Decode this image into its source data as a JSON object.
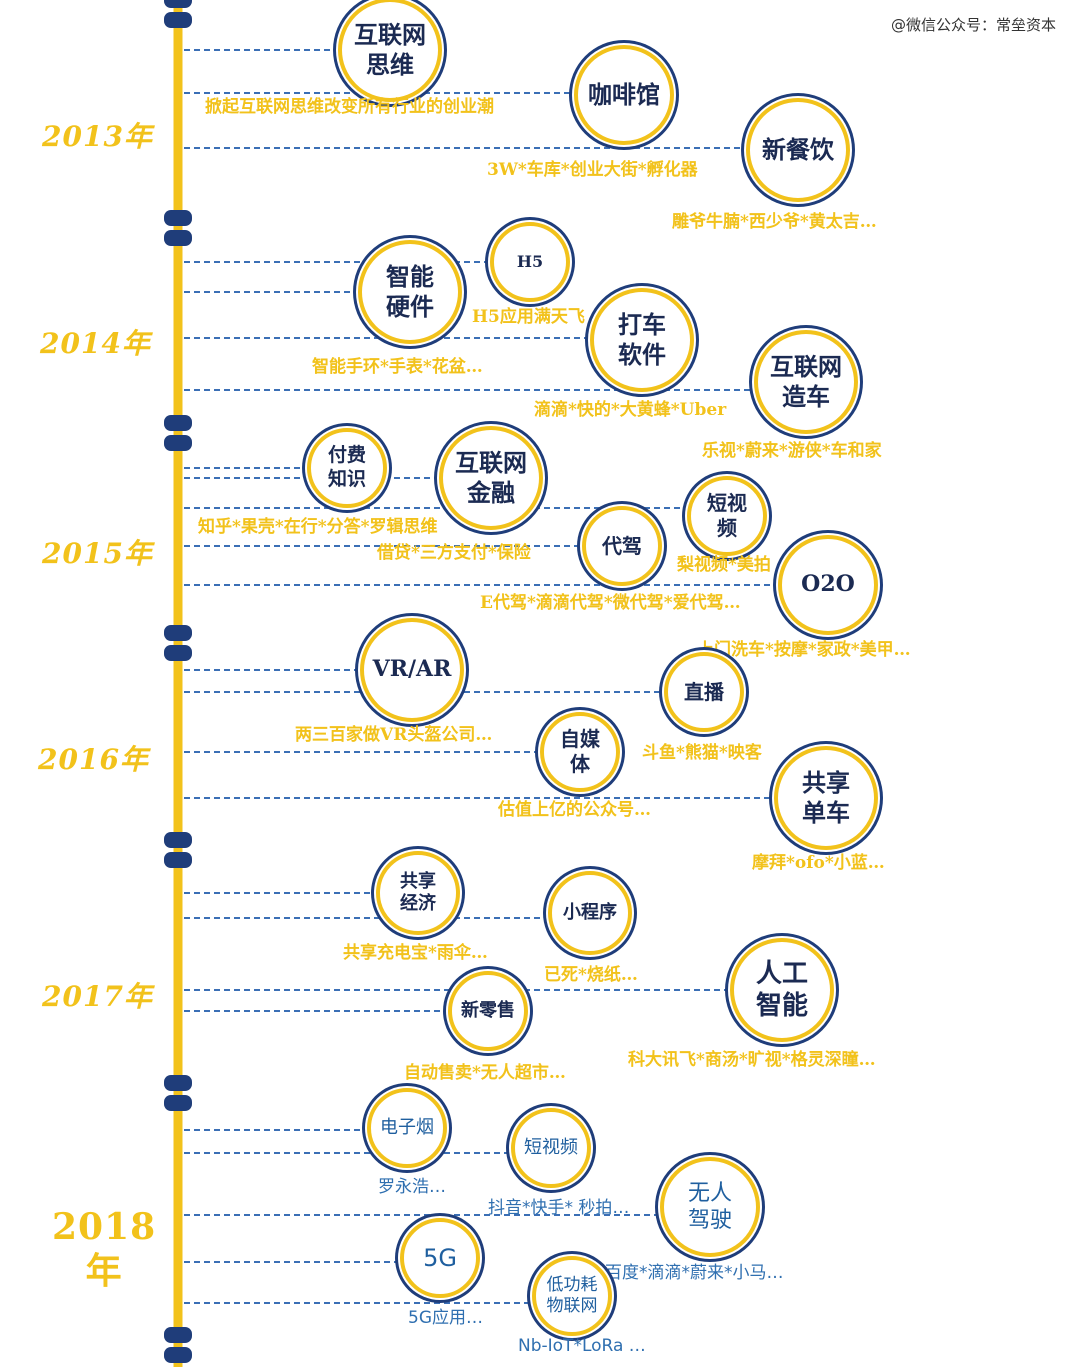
{
  "watermark": "@微信公众号：常垒资本",
  "colors": {
    "accent": "#f2c21b",
    "line": "#1f3d7a",
    "text_blue": "#2f6fb0"
  },
  "years": [
    {
      "label": "2013年"
    },
    {
      "label": "2014年"
    },
    {
      "label": "2015年"
    },
    {
      "label": "2016年"
    },
    {
      "label": "2017年"
    },
    {
      "label": "2018\n年"
    }
  ],
  "nodes": [
    {
      "label": "互联网\n思维",
      "caption": "掀起互联网思维改变所有行业的创业潮"
    },
    {
      "label": "咖啡馆",
      "caption": "3W*车库*创业大街*孵化器"
    },
    {
      "label": "新餐饮",
      "caption": "雕爷牛腩*西少爷*黄太吉…"
    },
    {
      "label": "H5",
      "caption": "H5应用满天飞"
    },
    {
      "label": "智能\n硬件",
      "caption": "智能手环*手表*花盆…"
    },
    {
      "label": "打车\n软件",
      "caption": "滴滴*快的*大黄蜂*Uber"
    },
    {
      "label": "互联网\n造车",
      "caption": "乐视*蔚来*游侠*车和家"
    },
    {
      "label": "付费\n知识",
      "caption": "知乎*果壳*在行*分答*罗辑思维"
    },
    {
      "label": "互联网\n金融",
      "caption": "借贷*三方支付*保险"
    },
    {
      "label": "短视\n频",
      "caption": "梨视频*美拍"
    },
    {
      "label": "代驾",
      "caption": "E代驾*滴滴代驾*微代驾*爱代驾…"
    },
    {
      "label": "O2O",
      "caption": "上门洗车*按摩*家政*美甲…"
    },
    {
      "label": "VR/AR",
      "caption": "两三百家做VR头盔公司…"
    },
    {
      "label": "直播",
      "caption": "斗鱼*熊猫*映客"
    },
    {
      "label": "自媒\n体",
      "caption": "估值上亿的公众号…"
    },
    {
      "label": "共享\n单车",
      "caption": "摩拜*ofo*小蓝…"
    },
    {
      "label": "共享\n经济",
      "caption": "共享充电宝*雨伞…"
    },
    {
      "label": "小程序",
      "caption": "已死*烧纸…"
    },
    {
      "label": "人工\n智能",
      "caption": "科大讯飞*商汤*旷视*格灵深瞳…"
    },
    {
      "label": "新零售",
      "caption": "自动售卖*无人超市…"
    },
    {
      "label": "电子烟",
      "caption": "罗永浩…"
    },
    {
      "label": "短视频",
      "caption": "抖音*快手* 秒拍…"
    },
    {
      "label": "无人\n驾驶",
      "caption": "百度*滴滴*蔚来*小马…"
    },
    {
      "label": "5G",
      "caption": "5G应用…"
    },
    {
      "label": "低功耗\n物联网",
      "caption": "Nb-IoT*LoRa …"
    }
  ]
}
